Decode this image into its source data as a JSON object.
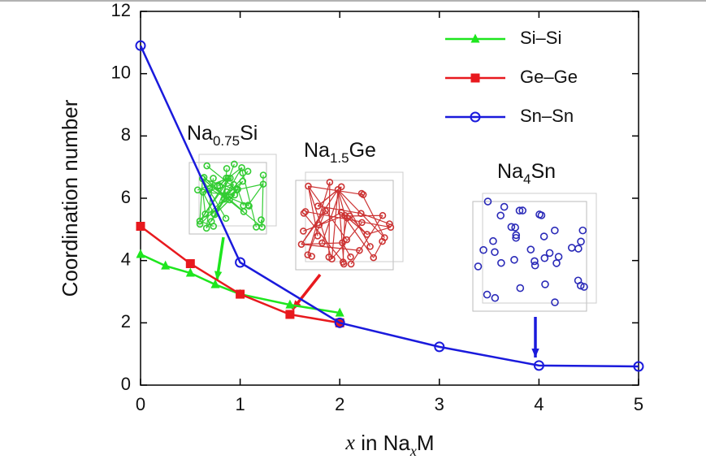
{
  "chart_data": {
    "type": "line",
    "x_label": [
      "x",
      " in Na",
      "x",
      "M"
    ],
    "y_label": "Coordination number",
    "xlim": [
      0,
      5
    ],
    "xticks": [
      0,
      1,
      2,
      3,
      4,
      5
    ],
    "ylim": [
      0,
      12
    ],
    "yticks": [
      0,
      2,
      4,
      6,
      8,
      10,
      12
    ],
    "legend": "upper right",
    "series": [
      {
        "name": "Si–Si",
        "color": "#1ee61e",
        "marker": "triangle",
        "x": [
          0,
          0.25,
          0.5,
          0.75,
          1,
          1.5,
          2
        ],
        "values": [
          4.2,
          3.83,
          3.6,
          3.23,
          2.92,
          2.58,
          2.32
        ]
      },
      {
        "name": "Ge–Ge",
        "color": "#e8191e",
        "marker": "square",
        "x": [
          0,
          0.5,
          1,
          1.5,
          2
        ],
        "values": [
          5.1,
          3.9,
          2.92,
          2.27,
          2.0
        ]
      },
      {
        "name": "Sn–Sn",
        "color": "#1a1adc",
        "marker": "circle",
        "x": [
          0,
          1,
          2,
          3,
          4,
          5
        ],
        "values": [
          10.9,
          3.94,
          2.0,
          1.23,
          0.63,
          0.6
        ]
      }
    ],
    "annotations": [
      [
        "Na",
        "0.75",
        "Si"
      ],
      [
        "Na",
        "1.5",
        "Ge"
      ],
      [
        "Na",
        "4",
        "Sn"
      ]
    ]
  }
}
